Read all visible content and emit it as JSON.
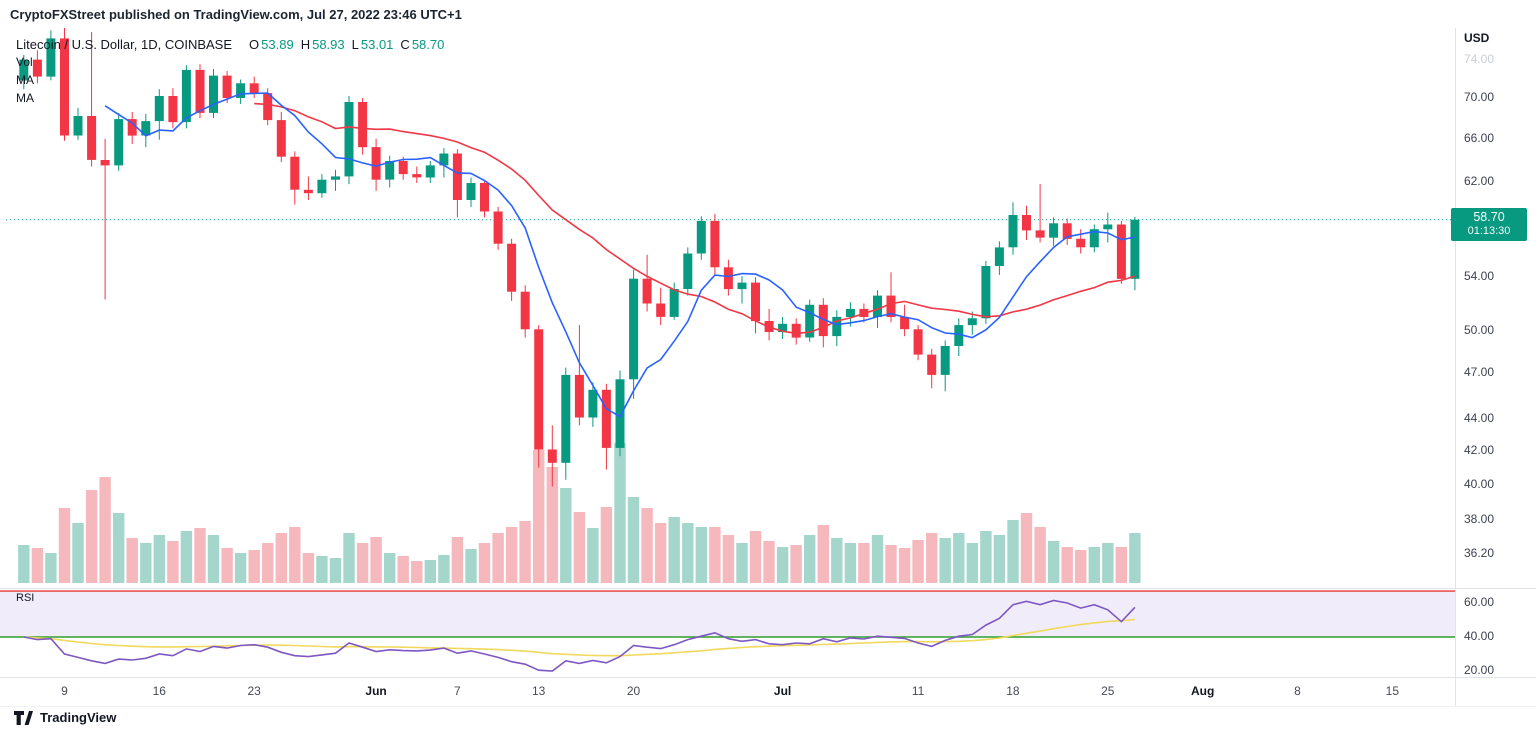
{
  "header": {
    "text": "CryptoFXStreet published on TradingView.com, Jul 27, 2022 23:46 UTC+1"
  },
  "legend": {
    "symbol": "Litecoin / U.S. Dollar, 1D, COINBASE",
    "ohlc": {
      "o_label": "O",
      "o_value": "53.89",
      "h_label": "H",
      "h_value": "58.93",
      "l_label": "L",
      "l_value": "53.01",
      "c_label": "C",
      "c_value": "58.70"
    },
    "indicators": [
      "Vol",
      "MA",
      "MA"
    ],
    "rsi_label": "RSI"
  },
  "price_axis": {
    "currency": "USD",
    "labels": [
      {
        "text": "74.00",
        "price": 74,
        "muted": true
      },
      {
        "text": "70.00",
        "price": 70
      },
      {
        "text": "66.00",
        "price": 66
      },
      {
        "text": "62.00",
        "price": 62
      },
      {
        "text": "54.00",
        "price": 54
      },
      {
        "text": "50.00",
        "price": 50
      },
      {
        "text": "47.00",
        "price": 47
      },
      {
        "text": "44.00",
        "price": 44
      },
      {
        "text": "42.00",
        "price": 42
      },
      {
        "text": "40.00",
        "price": 40
      },
      {
        "text": "38.00",
        "price": 38
      },
      {
        "text": "36.20",
        "price": 36.2
      }
    ],
    "badge": {
      "price": "58.70",
      "countdown": "01:13:30"
    }
  },
  "rsi_axis": [
    {
      "text": "60.00",
      "value": 60
    },
    {
      "text": "40.00",
      "value": 40
    },
    {
      "text": "20.00",
      "value": 20
    }
  ],
  "time_axis": [
    {
      "label": "9",
      "day": 3
    },
    {
      "label": "16",
      "day": 10
    },
    {
      "label": "23",
      "day": 17
    },
    {
      "label": "Jun",
      "day": 26,
      "major": true
    },
    {
      "label": "7",
      "day": 32
    },
    {
      "label": "13",
      "day": 38
    },
    {
      "label": "20",
      "day": 45
    },
    {
      "label": "Jul",
      "day": 56,
      "major": true
    },
    {
      "label": "11",
      "day": 66
    },
    {
      "label": "18",
      "day": 73
    },
    {
      "label": "25",
      "day": 80
    },
    {
      "label": "Aug",
      "day": 87,
      "major": true
    },
    {
      "label": "8",
      "day": 94
    },
    {
      "label": "15",
      "day": 101
    }
  ],
  "footer": {
    "brand": "TradingView"
  },
  "colors": {
    "up": "#089981",
    "down": "#f23645",
    "vol_up": "#a5d6cb",
    "vol_down": "#f5b8bd",
    "ma_fast": "#2962ff",
    "ma_slow": "#f23645",
    "rsi": "#7e57c2",
    "rsi_ma": "#f0d95c",
    "rsi_band": "#f1ecf9",
    "rsi_upper": "#e53935",
    "rsi_lower": "#2e9e2e",
    "badge": "#089981",
    "divider": "#e0e3eb"
  },
  "chart_data": {
    "type": "candlestick",
    "pair": "Litecoin / U.S. Dollar",
    "interval": "1D",
    "exchange": "COINBASE",
    "start_date": "2022-05-06",
    "last_price": 58.7,
    "last_ohlc": {
      "o": 53.89,
      "h": 58.93,
      "l": 53.01,
      "c": 58.7
    },
    "countdown": "01:13:30",
    "scale": "log",
    "overlays": {
      "ma_fast_period": 7,
      "ma_slow_period": 21
    },
    "levels": {
      "rsi_upper": 67,
      "rsi_lower": 40
    },
    "candles": {
      "o": [
        71.8,
        74.0,
        72.2,
        76.3,
        66.3,
        68.2,
        64.0,
        63.5,
        67.9,
        66.3,
        67.7,
        70.2,
        67.6,
        72.9,
        68.5,
        72.3,
        70.0,
        71.5,
        70.5,
        67.8,
        64.3,
        61.3,
        61.0,
        62.2,
        62.5,
        69.6,
        65.2,
        62.2,
        63.9,
        62.7,
        62.4,
        63.5,
        64.6,
        60.4,
        61.9,
        59.4,
        56.7,
        52.9,
        50.1,
        42.1,
        41.3,
        46.9,
        44.1,
        45.9,
        42.2,
        46.6,
        53.9,
        52.0,
        51.0,
        53.1,
        55.9,
        58.6,
        54.8,
        53.1,
        53.6,
        50.7,
        49.9,
        50.5,
        49.5,
        51.9,
        49.6,
        51.0,
        51.6,
        51.0,
        52.6,
        51.0,
        50.1,
        48.3,
        46.9,
        48.9,
        50.4,
        50.9,
        54.9,
        56.4,
        59.1,
        57.8,
        57.2,
        58.4,
        57.1,
        56.4,
        57.9,
        58.3,
        53.89
      ],
      "h": [
        74.5,
        75.0,
        77.2,
        77.5,
        69.0,
        77.0,
        66.0,
        68.5,
        68.6,
        68.4,
        70.9,
        71.0,
        73.4,
        73.5,
        73.0,
        72.8,
        71.9,
        72.2,
        71.0,
        68.6,
        64.8,
        62.5,
        62.7,
        63.1,
        70.2,
        70.0,
        66.0,
        64.4,
        64.3,
        63.4,
        63.9,
        65.1,
        65.0,
        62.4,
        62.2,
        59.8,
        57.1,
        53.4,
        50.4,
        43.6,
        47.4,
        50.4,
        46.4,
        46.3,
        47.2,
        54.6,
        55.8,
        53.2,
        53.6,
        56.4,
        59.0,
        59.2,
        55.4,
        54.1,
        54.0,
        51.6,
        51.0,
        50.9,
        52.3,
        52.4,
        51.5,
        52.1,
        52.0,
        53.0,
        54.4,
        51.9,
        50.4,
        48.7,
        49.3,
        50.9,
        51.4,
        55.3,
        56.9,
        60.2,
        59.9,
        61.8,
        58.9,
        58.8,
        57.9,
        58.3,
        59.3,
        58.6,
        58.93
      ],
      "l": [
        70.9,
        71.5,
        71.8,
        65.8,
        65.9,
        63.4,
        52.3,
        63.0,
        65.5,
        65.2,
        65.9,
        67.0,
        67.0,
        68.0,
        68.0,
        69.5,
        69.4,
        70.0,
        67.3,
        63.8,
        60.0,
        60.4,
        60.6,
        61.2,
        61.8,
        64.5,
        61.2,
        61.5,
        62.2,
        61.9,
        61.9,
        62.4,
        58.9,
        59.8,
        58.9,
        56.2,
        52.2,
        49.5,
        41.0,
        39.9,
        40.3,
        43.6,
        43.5,
        40.9,
        41.7,
        45.3,
        51.4,
        50.4,
        50.8,
        52.6,
        55.4,
        54.2,
        52.6,
        52.0,
        49.8,
        49.3,
        49.4,
        49.0,
        49.2,
        48.8,
        48.9,
        50.3,
        50.6,
        50.2,
        50.6,
        49.6,
        47.9,
        46.0,
        45.8,
        48.2,
        49.7,
        50.5,
        54.2,
        55.8,
        57.0,
        56.8,
        56.5,
        56.6,
        55.9,
        56.0,
        56.8,
        53.5,
        53.01
      ],
      "c": [
        74.0,
        72.2,
        76.3,
        66.3,
        68.2,
        64.0,
        63.5,
        67.9,
        66.3,
        67.7,
        70.2,
        67.6,
        72.9,
        68.5,
        72.3,
        70.0,
        71.5,
        70.5,
        67.8,
        64.3,
        61.3,
        61.0,
        62.2,
        62.5,
        69.6,
        65.2,
        62.2,
        63.9,
        62.7,
        62.4,
        63.5,
        64.6,
        60.4,
        61.9,
        59.4,
        56.7,
        52.9,
        50.1,
        42.1,
        41.3,
        46.9,
        44.1,
        45.9,
        42.2,
        46.6,
        53.9,
        52.0,
        51.0,
        53.1,
        55.9,
        58.6,
        54.8,
        53.1,
        53.6,
        50.7,
        49.9,
        50.5,
        49.5,
        51.9,
        49.6,
        51.0,
        51.6,
        51.0,
        52.6,
        51.0,
        50.1,
        48.3,
        46.9,
        48.9,
        50.4,
        50.9,
        54.9,
        56.4,
        59.1,
        57.8,
        57.2,
        58.4,
        57.1,
        56.4,
        57.9,
        58.3,
        53.89,
        58.7
      ]
    },
    "volume_rel": [
      38,
      35,
      30,
      75,
      60,
      93,
      106,
      70,
      45,
      40,
      48,
      42,
      52,
      55,
      48,
      35,
      30,
      33,
      40,
      50,
      56,
      30,
      27,
      25,
      50,
      40,
      46,
      30,
      27,
      22,
      23,
      28,
      46,
      34,
      40,
      50,
      56,
      62,
      133,
      116,
      95,
      71,
      55,
      76,
      140,
      86,
      75,
      60,
      66,
      60,
      56,
      56,
      48,
      40,
      52,
      42,
      36,
      38,
      48,
      58,
      45,
      40,
      40,
      48,
      38,
      35,
      43,
      50,
      45,
      50,
      40,
      52,
      48,
      63,
      70,
      56,
      42,
      36,
      33,
      36,
      40,
      36,
      50
    ],
    "rsi": [
      40,
      38.5,
      39,
      30,
      28,
      26,
      24.5,
      27,
      26.5,
      27.5,
      30,
      29,
      33,
      31.5,
      34.5,
      33.5,
      35,
      35.5,
      34,
      31,
      29,
      28.5,
      29.5,
      30.5,
      36.5,
      34,
      31.5,
      32.5,
      32,
      31.8,
      32.3,
      33.5,
      30.5,
      31.8,
      30,
      28,
      25.5,
      24,
      20.5,
      20,
      26,
      24.5,
      26.2,
      24.8,
      28.5,
      35,
      34,
      33.2,
      35.5,
      38.5,
      40.5,
      42.5,
      39,
      37.5,
      38.5,
      36,
      35.5,
      36.5,
      36,
      39,
      37.2,
      39.5,
      38.8,
      40.5,
      39.8,
      39.2,
      36.5,
      34.5,
      38,
      40.5,
      41.5,
      47,
      51,
      59,
      61,
      59,
      61.5,
      60,
      57,
      59,
      56,
      49,
      57.5
    ],
    "rsi_ma": [
      40,
      39.5,
      39,
      38,
      37,
      36.2,
      35.5,
      35,
      34.6,
      34.3,
      34.2,
      34.2,
      34.3,
      34.4,
      34.6,
      34.8,
      35,
      35.2,
      35.3,
      35.2,
      35,
      34.7,
      34.4,
      34.2,
      34.3,
      34.3,
      34.2,
      34.1,
      34,
      33.8,
      33.6,
      33.5,
      33.3,
      33.1,
      32.9,
      32.6,
      32.2,
      31.7,
      31,
      30.2,
      29.8,
      29.4,
      29.2,
      29,
      29,
      29.4,
      29.8,
      30.2,
      30.7,
      31.3,
      31.9,
      32.7,
      33.3,
      33.8,
      34.3,
      34.6,
      34.9,
      35.1,
      35.3,
      35.6,
      35.8,
      36.1,
      36.5,
      36.8,
      37.1,
      37.3,
      37.3,
      37.2,
      37.3,
      37.5,
      37.8,
      38.5,
      39.4,
      40.8,
      42.2,
      43.5,
      44.9,
      46.2,
      47.3,
      48.3,
      49.2,
      49.6,
      50.3
    ]
  }
}
